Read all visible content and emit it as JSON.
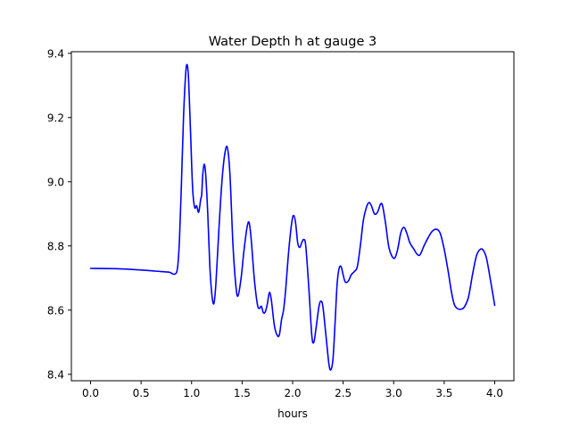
{
  "chart_data": {
    "type": "line",
    "title": "Water Depth h at gauge 3",
    "xlabel": "hours",
    "ylabel": "",
    "xlim": [
      -0.19,
      4.19
    ],
    "ylim": [
      8.38,
      9.405
    ],
    "xticks": [
      0.0,
      0.5,
      1.0,
      1.5,
      2.0,
      2.5,
      3.0,
      3.5,
      4.0
    ],
    "xtick_labels": [
      "0.0",
      "0.5",
      "1.0",
      "1.5",
      "2.0",
      "2.5",
      "3.0",
      "3.5",
      "4.0"
    ],
    "yticks": [
      8.4,
      8.6,
      8.8,
      9.0,
      9.2,
      9.4
    ],
    "ytick_labels": [
      "8.4",
      "8.6",
      "8.8",
      "9.0",
      "9.2",
      "9.4"
    ],
    "grid": false,
    "series": [
      {
        "color": "#0000ff",
        "points": [
          [
            0.0,
            8.73
          ],
          [
            0.25,
            8.729
          ],
          [
            0.5,
            8.725
          ],
          [
            0.7,
            8.72
          ],
          [
            0.78,
            8.718
          ],
          [
            0.83,
            8.712
          ],
          [
            0.86,
            8.73
          ],
          [
            0.88,
            8.82
          ],
          [
            0.9,
            9.0
          ],
          [
            0.92,
            9.2
          ],
          [
            0.94,
            9.33
          ],
          [
            0.955,
            9.365
          ],
          [
            0.97,
            9.32
          ],
          [
            0.99,
            9.15
          ],
          [
            1.01,
            8.98
          ],
          [
            1.03,
            8.92
          ],
          [
            1.05,
            8.925
          ],
          [
            1.07,
            8.905
          ],
          [
            1.09,
            8.945
          ],
          [
            1.1,
            8.96
          ],
          [
            1.11,
            9.02
          ],
          [
            1.125,
            9.055
          ],
          [
            1.14,
            9.02
          ],
          [
            1.16,
            8.9
          ],
          [
            1.18,
            8.74
          ],
          [
            1.2,
            8.65
          ],
          [
            1.22,
            8.62
          ],
          [
            1.24,
            8.68
          ],
          [
            1.27,
            8.85
          ],
          [
            1.3,
            9.0
          ],
          [
            1.33,
            9.09
          ],
          [
            1.355,
            9.105
          ],
          [
            1.38,
            9.02
          ],
          [
            1.41,
            8.8
          ],
          [
            1.44,
            8.67
          ],
          [
            1.46,
            8.645
          ],
          [
            1.49,
            8.7
          ],
          [
            1.52,
            8.79
          ],
          [
            1.55,
            8.86
          ],
          [
            1.57,
            8.872
          ],
          [
            1.59,
            8.82
          ],
          [
            1.62,
            8.7
          ],
          [
            1.65,
            8.62
          ],
          [
            1.67,
            8.605
          ],
          [
            1.69,
            8.612
          ],
          [
            1.71,
            8.592
          ],
          [
            1.73,
            8.595
          ],
          [
            1.75,
            8.62
          ],
          [
            1.77,
            8.655
          ],
          [
            1.79,
            8.63
          ],
          [
            1.82,
            8.55
          ],
          [
            1.85,
            8.52
          ],
          [
            1.87,
            8.525
          ],
          [
            1.89,
            8.57
          ],
          [
            1.91,
            8.6
          ],
          [
            1.93,
            8.66
          ],
          [
            1.96,
            8.78
          ],
          [
            1.99,
            8.87
          ],
          [
            2.01,
            8.895
          ],
          [
            2.03,
            8.87
          ],
          [
            2.05,
            8.81
          ],
          [
            2.07,
            8.795
          ],
          [
            2.09,
            8.81
          ],
          [
            2.11,
            8.82
          ],
          [
            2.13,
            8.8
          ],
          [
            2.16,
            8.67
          ],
          [
            2.19,
            8.52
          ],
          [
            2.21,
            8.5
          ],
          [
            2.23,
            8.54
          ],
          [
            2.26,
            8.61
          ],
          [
            2.28,
            8.628
          ],
          [
            2.3,
            8.61
          ],
          [
            2.33,
            8.52
          ],
          [
            2.36,
            8.43
          ],
          [
            2.38,
            8.415
          ],
          [
            2.4,
            8.45
          ],
          [
            2.42,
            8.56
          ],
          [
            2.44,
            8.68
          ],
          [
            2.46,
            8.73
          ],
          [
            2.48,
            8.735
          ],
          [
            2.5,
            8.71
          ],
          [
            2.52,
            8.688
          ],
          [
            2.55,
            8.69
          ],
          [
            2.58,
            8.71
          ],
          [
            2.61,
            8.72
          ],
          [
            2.64,
            8.735
          ],
          [
            2.67,
            8.8
          ],
          [
            2.7,
            8.88
          ],
          [
            2.73,
            8.92
          ],
          [
            2.755,
            8.935
          ],
          [
            2.78,
            8.925
          ],
          [
            2.81,
            8.9
          ],
          [
            2.84,
            8.905
          ],
          [
            2.87,
            8.93
          ],
          [
            2.89,
            8.925
          ],
          [
            2.92,
            8.87
          ],
          [
            2.95,
            8.8
          ],
          [
            2.98,
            8.77
          ],
          [
            3.01,
            8.762
          ],
          [
            3.04,
            8.79
          ],
          [
            3.07,
            8.84
          ],
          [
            3.1,
            8.858
          ],
          [
            3.13,
            8.84
          ],
          [
            3.16,
            8.81
          ],
          [
            3.2,
            8.79
          ],
          [
            3.23,
            8.775
          ],
          [
            3.26,
            8.772
          ],
          [
            3.3,
            8.8
          ],
          [
            3.34,
            8.825
          ],
          [
            3.38,
            8.845
          ],
          [
            3.42,
            8.852
          ],
          [
            3.46,
            8.84
          ],
          [
            3.5,
            8.79
          ],
          [
            3.54,
            8.72
          ],
          [
            3.57,
            8.66
          ],
          [
            3.6,
            8.618
          ],
          [
            3.63,
            8.605
          ],
          [
            3.67,
            8.603
          ],
          [
            3.7,
            8.61
          ],
          [
            3.74,
            8.64
          ],
          [
            3.78,
            8.71
          ],
          [
            3.82,
            8.77
          ],
          [
            3.86,
            8.79
          ],
          [
            3.89,
            8.785
          ],
          [
            3.92,
            8.76
          ],
          [
            3.96,
            8.69
          ],
          [
            4.0,
            8.615
          ]
        ]
      }
    ]
  }
}
